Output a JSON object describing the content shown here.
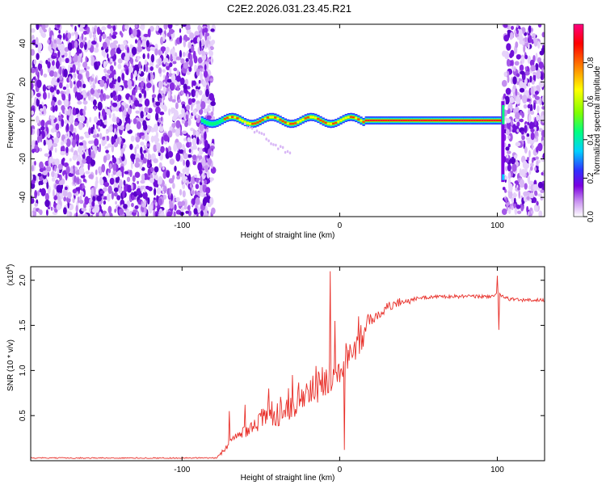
{
  "title": "C2E2.2026.031.23.45.R21",
  "chart_data": [
    {
      "type": "heatmap",
      "name": "spectrogram",
      "xlabel": "Height of straight line (km)",
      "ylabel": "Frequency (Hz)",
      "xlim": [
        -196,
        130
      ],
      "ylim": [
        -50,
        50
      ],
      "x_ticks": [
        -100,
        0,
        100
      ],
      "x_tick_labels": [
        "-100",
        "0",
        "100"
      ],
      "y_ticks": [
        -40,
        -20,
        0,
        20,
        40
      ],
      "y_tick_labels": [
        "-40",
        "-20",
        "0",
        "20",
        "40"
      ],
      "colorbar": {
        "label": "Normalized spectral amplitude",
        "range": [
          0,
          1
        ],
        "ticks": [
          0.0,
          0.2,
          0.4,
          0.6,
          0.8
        ],
        "tick_labels": [
          "0.0",
          "0.2",
          "0.4",
          "0.6",
          "0.8"
        ],
        "colors": [
          "#ffffff",
          "#c890f0",
          "#7b00e0",
          "#3030ff",
          "#00d0ff",
          "#00ff80",
          "#80ff00",
          "#ffff00",
          "#ff8000",
          "#ff0000",
          "#ff0080"
        ]
      },
      "regions": {
        "noise_left_to": -83,
        "noise_right_from": 107,
        "signal_band": [
          -88,
          102
        ],
        "signal_frequency": 0
      }
    },
    {
      "type": "line",
      "name": "snr",
      "xlabel": "Height of straight line (km)",
      "ylabel": "SNR (10 * v/v)",
      "y_multiplier_label": "(x10",
      "y_multiplier_exp": "4",
      "xlim": [
        -196,
        130
      ],
      "ylim": [
        0,
        2.15
      ],
      "x_ticks": [
        -100,
        0,
        100
      ],
      "x_tick_labels": [
        "-100",
        "0",
        "100"
      ],
      "y_ticks": [
        0.5,
        1.0,
        1.5,
        2.0
      ],
      "y_tick_labels": [
        "0.5",
        "1.0",
        "1.5",
        "2.0"
      ],
      "series_color": "#e8302a",
      "profile": {
        "x": [
          -196,
          -78,
          -72,
          -60,
          -45,
          -30,
          -15,
          -5,
          0,
          10,
          20,
          30,
          40,
          50,
          60,
          80,
          95,
          100,
          105,
          115,
          130
        ],
        "y": [
          0.03,
          0.03,
          0.15,
          0.35,
          0.5,
          0.65,
          0.8,
          0.95,
          1.05,
          1.3,
          1.55,
          1.7,
          1.77,
          1.8,
          1.82,
          1.82,
          1.82,
          1.85,
          1.8,
          1.78,
          1.78
        ]
      },
      "spikes": [
        {
          "x": -70,
          "y": 0.55
        },
        {
          "x": -60,
          "y": 0.62
        },
        {
          "x": -45,
          "y": 0.8
        },
        {
          "x": -30,
          "y": 0.95
        },
        {
          "x": -15,
          "y": 1.05
        },
        {
          "x": -6,
          "y": 2.1
        },
        {
          "x": -3,
          "y": 1.55
        },
        {
          "x": 3,
          "y": 0.12
        },
        {
          "x": 12,
          "y": 1.6
        },
        {
          "x": 100,
          "y": 2.05
        },
        {
          "x": 101,
          "y": 1.45
        }
      ]
    }
  ]
}
